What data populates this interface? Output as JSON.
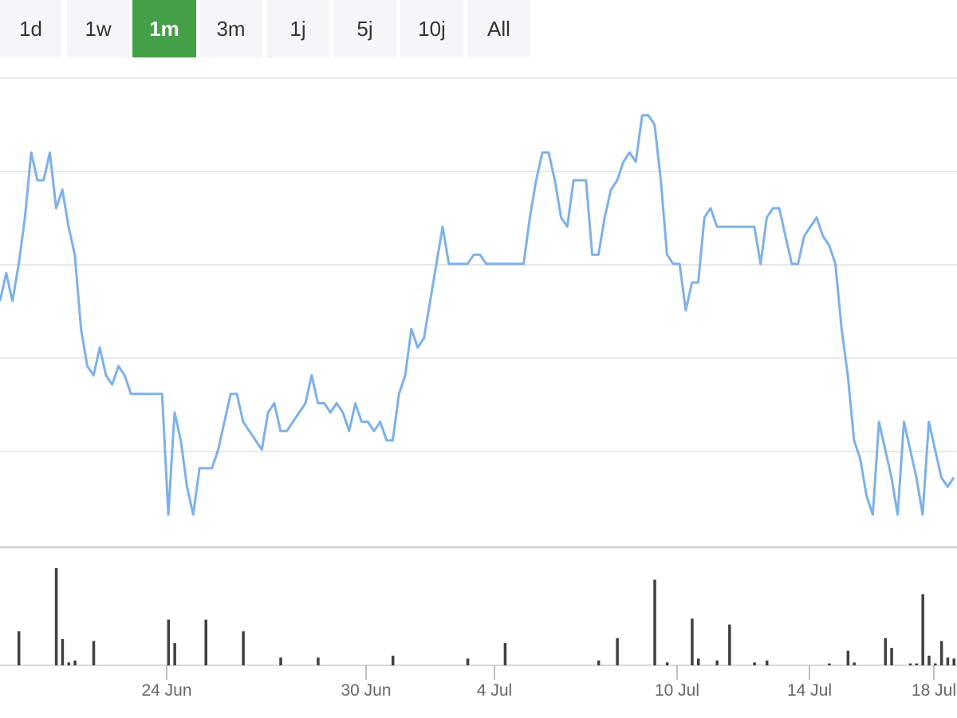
{
  "toolbar": {
    "ranges": [
      {
        "label": "1d",
        "active": false
      },
      {
        "label": "1w",
        "active": false
      },
      {
        "label": "1m",
        "active": true
      },
      {
        "label": "3m",
        "active": false
      },
      {
        "label": "1j",
        "active": false
      },
      {
        "label": "5j",
        "active": false
      },
      {
        "label": "10j",
        "active": false
      },
      {
        "label": "All",
        "active": false
      }
    ],
    "active_color": "#43a047"
  },
  "chart_data": {
    "type": "line",
    "grid": true,
    "x_tick_labels": [
      "24 Jun",
      "30 Jun",
      "4 Jul",
      "10 Jul",
      "14 Jul",
      "18 Jul"
    ],
    "price": {
      "color": "#7db1e8",
      "ylim": [
        0,
        5
      ],
      "gridlines": 5,
      "x": [
        0,
        1,
        2,
        3,
        4,
        5,
        6,
        7,
        8,
        9,
        10,
        11,
        12,
        13,
        14,
        15,
        16,
        17,
        18,
        19,
        20,
        21,
        22,
        23,
        24,
        25,
        26,
        27,
        28,
        29,
        30,
        31,
        32,
        33,
        34,
        35,
        36,
        37,
        38,
        39,
        40,
        41,
        42,
        43,
        44,
        45,
        46,
        47,
        48,
        49,
        50,
        51,
        52,
        53,
        54,
        55,
        56,
        57,
        58,
        59,
        60,
        61,
        62,
        63,
        64,
        65,
        66,
        67,
        68,
        69,
        70,
        71,
        72,
        73,
        74,
        75,
        76,
        77,
        78,
        79,
        80,
        81,
        82,
        83,
        84,
        85,
        86,
        87,
        88,
        89,
        90,
        91,
        92,
        93,
        94,
        95,
        96,
        97,
        98,
        99,
        100,
        101,
        102,
        103,
        104,
        105,
        106,
        107,
        108,
        109,
        110,
        111,
        112,
        113,
        114,
        115,
        116,
        117,
        118,
        119,
        120,
        121,
        122,
        123,
        124,
        125,
        126,
        127,
        128,
        129,
        130,
        131,
        132,
        133,
        134,
        135,
        136,
        137,
        138,
        139,
        140,
        141,
        142,
        143,
        144,
        145,
        146,
        147,
        148,
        149,
        150,
        151,
        152,
        153
      ],
      "values": [
        2.6,
        2.9,
        2.6,
        3.0,
        3.5,
        4.2,
        3.9,
        3.9,
        4.2,
        3.6,
        3.8,
        3.4,
        3.1,
        2.3,
        1.9,
        1.8,
        2.1,
        1.8,
        1.7,
        1.9,
        1.8,
        1.6,
        1.6,
        1.6,
        1.6,
        1.6,
        1.6,
        0.3,
        1.4,
        1.1,
        0.6,
        0.3,
        0.8,
        0.8,
        0.8,
        1.0,
        1.3,
        1.6,
        1.6,
        1.3,
        1.2,
        1.1,
        1.0,
        1.4,
        1.5,
        1.2,
        1.2,
        1.3,
        1.4,
        1.5,
        1.8,
        1.5,
        1.5,
        1.4,
        1.5,
        1.4,
        1.2,
        1.5,
        1.3,
        1.3,
        1.2,
        1.3,
        1.1,
        1.1,
        1.6,
        1.8,
        2.3,
        2.1,
        2.2,
        2.6,
        3.0,
        3.4,
        3.0,
        3.0,
        3.0,
        3.0,
        3.1,
        3.1,
        3.0,
        3.0,
        3.0,
        3.0,
        3.0,
        3.0,
        3.0,
        3.5,
        3.9,
        4.2,
        4.2,
        3.9,
        3.5,
        3.4,
        3.9,
        3.9,
        3.9,
        3.1,
        3.1,
        3.5,
        3.8,
        3.9,
        4.1,
        4.2,
        4.1,
        4.6,
        4.6,
        4.5,
        3.9,
        3.1,
        3.0,
        3.0,
        2.5,
        2.8,
        2.8,
        3.5,
        3.6,
        3.4,
        3.4,
        3.4,
        3.4,
        3.4,
        3.4,
        3.4,
        3.0,
        3.5,
        3.6,
        3.6,
        3.3,
        3.0,
        3.0,
        3.3,
        3.4,
        3.5,
        3.3,
        3.2,
        3.0,
        2.3,
        1.8,
        1.1,
        0.9,
        0.5,
        0.3,
        1.3,
        1.0,
        0.7,
        0.3,
        1.3,
        1.0,
        0.7,
        0.3,
        1.3,
        1.0,
        0.7,
        0.6,
        0.7
      ]
    },
    "volume": {
      "color": "#404040",
      "ylim": [
        0,
        1
      ],
      "bars": [
        {
          "x": 3,
          "v": 0.35
        },
        {
          "x": 9,
          "v": 1.0
        },
        {
          "x": 10,
          "v": 0.27
        },
        {
          "x": 11,
          "v": 0.03
        },
        {
          "x": 12,
          "v": 0.05
        },
        {
          "x": 15,
          "v": 0.25
        },
        {
          "x": 27,
          "v": 0.47
        },
        {
          "x": 28,
          "v": 0.23
        },
        {
          "x": 33,
          "v": 0.47
        },
        {
          "x": 39,
          "v": 0.35
        },
        {
          "x": 45,
          "v": 0.08
        },
        {
          "x": 51,
          "v": 0.08
        },
        {
          "x": 63,
          "v": 0.1
        },
        {
          "x": 75,
          "v": 0.07
        },
        {
          "x": 81,
          "v": 0.23
        },
        {
          "x": 96,
          "v": 0.05
        },
        {
          "x": 99,
          "v": 0.28
        },
        {
          "x": 105,
          "v": 0.88
        },
        {
          "x": 107,
          "v": 0.03
        },
        {
          "x": 111,
          "v": 0.48
        },
        {
          "x": 112,
          "v": 0.07
        },
        {
          "x": 115,
          "v": 0.05
        },
        {
          "x": 117,
          "v": 0.42
        },
        {
          "x": 121,
          "v": 0.03
        },
        {
          "x": 123,
          "v": 0.05
        },
        {
          "x": 133,
          "v": 0.02
        },
        {
          "x": 136,
          "v": 0.15
        },
        {
          "x": 137,
          "v": 0.03
        },
        {
          "x": 142,
          "v": 0.28
        },
        {
          "x": 143,
          "v": 0.18
        },
        {
          "x": 146,
          "v": 0.02
        },
        {
          "x": 147,
          "v": 0.02
        },
        {
          "x": 148,
          "v": 0.73
        },
        {
          "x": 149,
          "v": 0.1
        },
        {
          "x": 150,
          "v": 0.02
        },
        {
          "x": 151,
          "v": 0.25
        },
        {
          "x": 152,
          "v": 0.08
        },
        {
          "x": 153,
          "v": 0.07
        }
      ]
    }
  }
}
